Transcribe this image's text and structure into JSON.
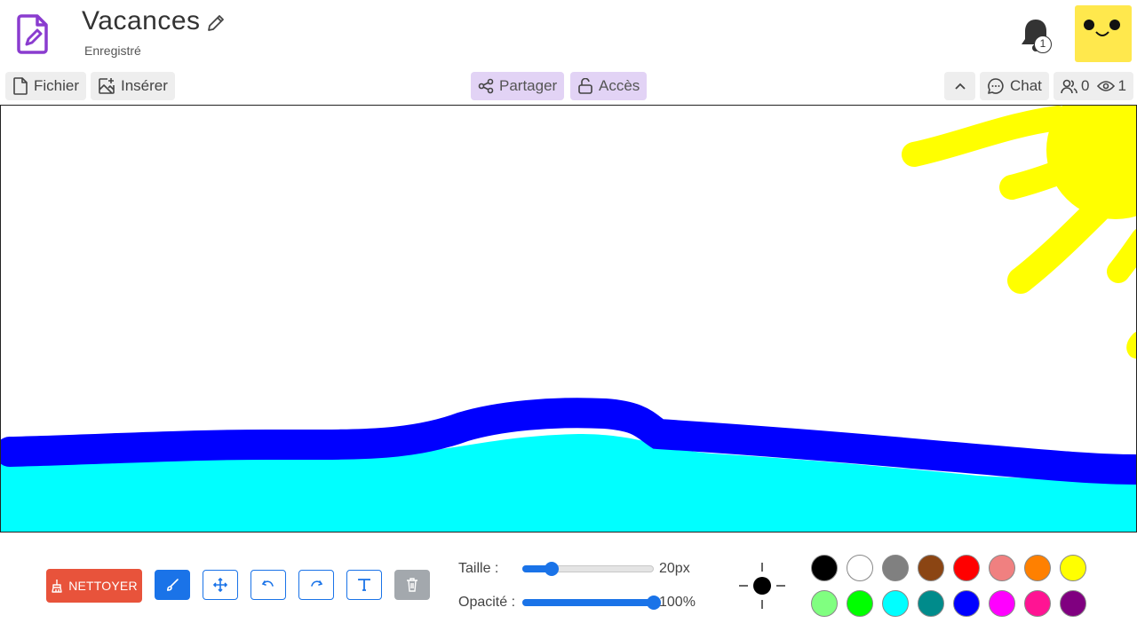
{
  "header": {
    "title": "Vacances",
    "status": "Enregistré",
    "notifications_count": "1"
  },
  "toolbar": {
    "file_label": "Fichier",
    "insert_label": "Insérer",
    "share_label": "Partager",
    "access_label": "Accès",
    "chat_label": "Chat",
    "users_count": "0",
    "viewers_count": "1"
  },
  "tools": {
    "clean_label": "NETTOYER",
    "size_label": "Taille :",
    "size_value": "20px",
    "size_fraction": 0.22,
    "opacity_label": "Opacité :",
    "opacity_value": "100%",
    "opacity_fraction": 1.0
  },
  "colors": {
    "accent": "#1a73e8",
    "clean": "#e8533b",
    "palette": [
      "#000000",
      "#ffffff",
      "#808080",
      "#8b4513",
      "#ff0000",
      "#f08080",
      "#ff8000",
      "#ffff00",
      "#80ff80",
      "#00ff00",
      "#00ffff",
      "#008b8b",
      "#0000ff",
      "#ff00ff",
      "#ff1493",
      "#800080"
    ]
  },
  "icons": {
    "app": "drawing-file-icon",
    "edit": "pencil-icon",
    "bell": "bell-icon",
    "brush": "brush-icon",
    "move": "move-icon",
    "undo": "undo-icon",
    "redo": "redo-icon",
    "text": "text-icon",
    "trash": "trash-icon"
  }
}
